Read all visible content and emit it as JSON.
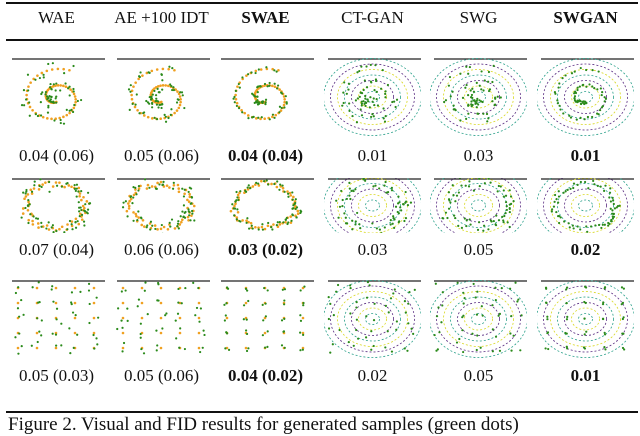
{
  "columns": [
    {
      "label": "WAE",
      "bold": false
    },
    {
      "label": "AE +100 IDT",
      "bold": false
    },
    {
      "label": "SWAE",
      "bold": true
    },
    {
      "label": "CT-GAN",
      "bold": false
    },
    {
      "label": "SWG",
      "bold": false
    },
    {
      "label": "SWGAN",
      "bold": true
    }
  ],
  "rows": [
    {
      "dataset": "swiss-roll",
      "values": [
        "0.04 (0.06)",
        "0.05 (0.06)",
        "0.04 (0.04)",
        "0.01",
        "0.03",
        "0.01"
      ]
    },
    {
      "dataset": "8-gaussians-ring",
      "values": [
        "0.07 (0.04)",
        "0.06 (0.06)",
        "0.03 (0.02)",
        "0.03",
        "0.05",
        "0.02"
      ]
    },
    {
      "dataset": "25-gaussians-grid",
      "values": [
        "0.05 (0.03)",
        "0.05 (0.06)",
        "0.04 (0.02)",
        "0.02",
        "0.05",
        "0.01"
      ]
    }
  ],
  "caption": "Figure 2. Visual and FID results for generated samples (green dots)",
  "colors": {
    "generated": "#2a8a1a",
    "real": "#f0a020",
    "contour_a": "#5a2d82",
    "contour_b": "#2aa08a",
    "contour_c": "#d8d820"
  }
}
